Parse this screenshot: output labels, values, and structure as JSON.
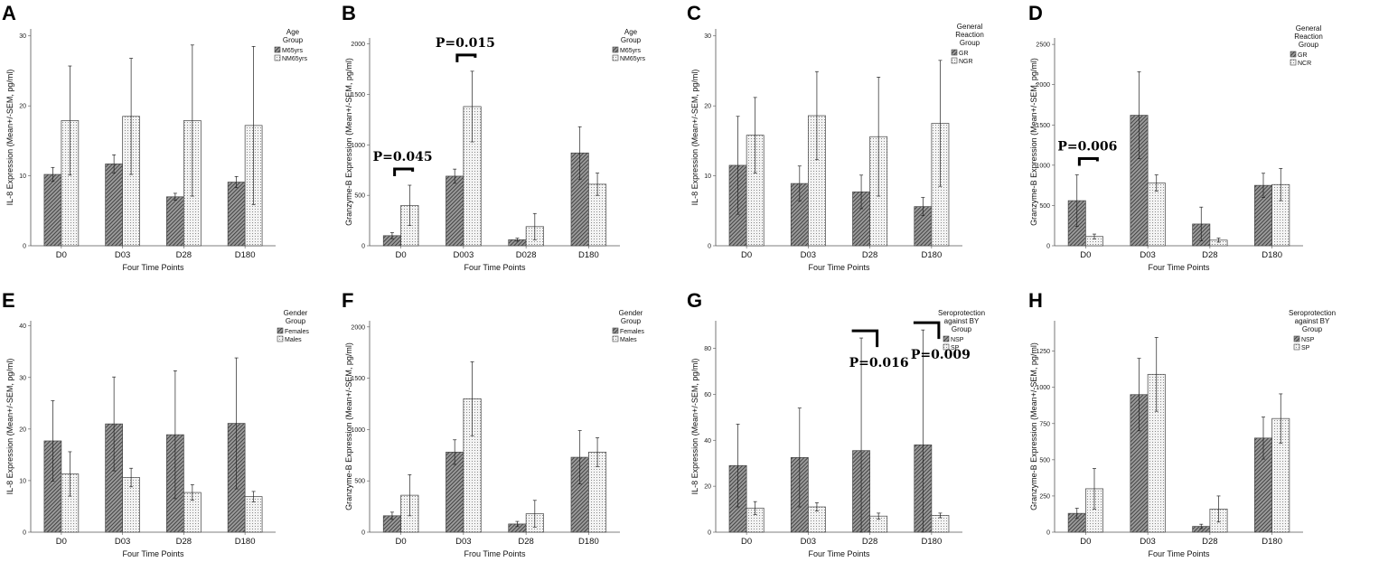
{
  "chart_data": [
    {
      "panel": "A",
      "type": "bar",
      "categories": [
        "D0",
        "D03",
        "D28",
        "D180"
      ],
      "xlabel": "Four Time Points",
      "ylabel": "IL-8 Expression (Mean+/-SEM, pg/ml)",
      "ylim": [
        0,
        31
      ],
      "yticks": [
        0,
        10,
        20,
        30
      ],
      "legend_title": [
        "Age",
        "Group"
      ],
      "series": [
        {
          "name": "M65yrs",
          "pattern": "dark",
          "values": [
            10.2,
            11.7,
            7.0,
            9.1
          ],
          "err": [
            1.0,
            1.3,
            0.5,
            0.8
          ]
        },
        {
          "name": "NM65yrs",
          "pattern": "light",
          "values": [
            17.9,
            18.5,
            17.9,
            17.2
          ],
          "err": [
            7.8,
            8.3,
            10.8,
            11.3
          ]
        }
      ],
      "annotations": []
    },
    {
      "panel": "B",
      "type": "bar",
      "categories": [
        "D0",
        "D003",
        "D028",
        "D180"
      ],
      "xlabel": "Four Time Points",
      "ylabel": "Granzyme-B Expression (Mean+/-SEM, pg/ml)",
      "ylim": [
        0,
        2060
      ],
      "yticks": [
        0,
        500,
        1000,
        1500,
        2000
      ],
      "legend_title": [
        "Age",
        "Group"
      ],
      "series": [
        {
          "name": "M65yrs",
          "pattern": "dark",
          "values": [
            100,
            690,
            60,
            920
          ],
          "err": [
            30,
            70,
            15,
            260
          ]
        },
        {
          "name": "NM65yrs",
          "pattern": "light",
          "values": [
            400,
            1380,
            190,
            610
          ],
          "err": [
            200,
            350,
            130,
            110
          ]
        }
      ],
      "annotations": [
        {
          "text": "P=0.045",
          "category": 0
        },
        {
          "text": "P=0.015",
          "category": 1
        }
      ]
    },
    {
      "panel": "C",
      "type": "bar",
      "categories": [
        "D0",
        "D03",
        "D28",
        "D180"
      ],
      "xlabel": "Four Time Points",
      "ylabel": "IL-8 Expression (Mean+/-SEM, pg/ml)",
      "ylim": [
        0,
        31
      ],
      "yticks": [
        0,
        10,
        20,
        30
      ],
      "legend_title": [
        "General",
        "Reaction",
        "Group"
      ],
      "series": [
        {
          "name": "GR",
          "pattern": "dark",
          "values": [
            11.5,
            8.9,
            7.7,
            5.6
          ],
          "err": [
            7.0,
            2.5,
            2.4,
            1.3
          ]
        },
        {
          "name": "NGR",
          "pattern": "light",
          "values": [
            15.8,
            18.6,
            15.6,
            17.5
          ],
          "err": [
            5.4,
            6.3,
            8.5,
            9.0
          ]
        }
      ],
      "annotations": []
    },
    {
      "panel": "D",
      "type": "bar",
      "categories": [
        "D0",
        "D03",
        "D28",
        "D180"
      ],
      "xlabel": "Four Time Points",
      "ylabel": "Granzyme-B Expression (Mean+/-SEM, pg/ml)",
      "ylim": [
        0,
        2580
      ],
      "yticks": [
        0,
        500,
        1000,
        1500,
        2000,
        2500
      ],
      "legend_title": [
        "General",
        "Reaction",
        "Group"
      ],
      "series": [
        {
          "name": "GR",
          "pattern": "dark",
          "values": [
            560,
            1620,
            270,
            750
          ],
          "err": [
            320,
            540,
            210,
            150
          ]
        },
        {
          "name": "NCR",
          "pattern": "light",
          "values": [
            115,
            780,
            70,
            760
          ],
          "err": [
            30,
            100,
            25,
            200
          ]
        }
      ],
      "annotations": [
        {
          "text": "P=0.006",
          "category": 0
        }
      ]
    },
    {
      "panel": "E",
      "type": "bar",
      "categories": [
        "D0",
        "D03",
        "D28",
        "D180"
      ],
      "xlabel": "Four Time Points",
      "ylabel": "IL-8 Expression (Mean+/-SEM, pg/ml)",
      "ylim": [
        0,
        41
      ],
      "yticks": [
        0,
        10,
        20,
        30,
        40
      ],
      "legend_title": [
        "Gender",
        "Group"
      ],
      "series": [
        {
          "name": "Females",
          "pattern": "dark",
          "values": [
            17.7,
            21.0,
            18.9,
            21.1
          ],
          "err": [
            7.8,
            9.1,
            12.4,
            12.7
          ]
        },
        {
          "name": "Males",
          "pattern": "light",
          "values": [
            11.3,
            10.6,
            7.7,
            6.9
          ],
          "err": [
            4.3,
            1.8,
            1.5,
            1.0
          ]
        }
      ],
      "annotations": []
    },
    {
      "panel": "F",
      "type": "bar",
      "categories": [
        "D0",
        "D03",
        "D28",
        "D180"
      ],
      "xlabel": "Frou Time Points",
      "ylabel": "Granzyme-B Expression (Mean+/-SEM, pg/ml)",
      "ylim": [
        0,
        2060
      ],
      "yticks": [
        0,
        500,
        1000,
        1500,
        2000
      ],
      "legend_title": [
        "Gender",
        "Group"
      ],
      "series": [
        {
          "name": "Females",
          "pattern": "dark",
          "values": [
            160,
            780,
            80,
            730
          ],
          "err": [
            35,
            120,
            25,
            260
          ]
        },
        {
          "name": "Males",
          "pattern": "light",
          "values": [
            360,
            1300,
            180,
            780
          ],
          "err": [
            200,
            360,
            130,
            140
          ]
        }
      ],
      "annotations": []
    },
    {
      "panel": "G",
      "type": "bar",
      "categories": [
        "D0",
        "D03",
        "D28",
        "D180"
      ],
      "xlabel": "Four Time Points",
      "ylabel": "IL-8 Expression (Mean+/-SEM, pg/ml)",
      "ylim": [
        0,
        92
      ],
      "yticks": [
        0,
        20,
        40,
        60,
        80
      ],
      "legend_title": [
        "Seroprotection",
        "against BY",
        "Group"
      ],
      "series": [
        {
          "name": "NSP",
          "pattern": "dark",
          "values": [
            29,
            32.5,
            35.5,
            38
          ],
          "err": [
            18,
            21.5,
            49,
            50
          ]
        },
        {
          "name": "SP",
          "pattern": "light",
          "values": [
            10.5,
            11,
            7,
            7.3
          ],
          "err": [
            2.8,
            1.8,
            1.3,
            1.0
          ]
        }
      ],
      "annotations": [
        {
          "text": "P=0.016",
          "category": 2
        },
        {
          "text": "P=0.009",
          "category": 3
        }
      ]
    },
    {
      "panel": "H",
      "type": "bar",
      "categories": [
        "D0",
        "D03",
        "D28",
        "D180"
      ],
      "xlabel": "Four Time Points",
      "ylabel": "Granzyme-B Expression (Mean+/-SEM, pg/ml)",
      "ylim": [
        0,
        1460
      ],
      "yticks": [
        0,
        250,
        500,
        750,
        1000,
        1250
      ],
      "legend_title": [
        "Seroprotection",
        "against BY",
        "Group"
      ],
      "series": [
        {
          "name": "NSP",
          "pattern": "dark",
          "values": [
            130,
            950,
            40,
            650
          ],
          "err": [
            35,
            250,
            15,
            145
          ]
        },
        {
          "name": "SP",
          "pattern": "light",
          "values": [
            300,
            1090,
            160,
            785
          ],
          "err": [
            140,
            255,
            90,
            170
          ]
        }
      ],
      "annotations": []
    }
  ]
}
